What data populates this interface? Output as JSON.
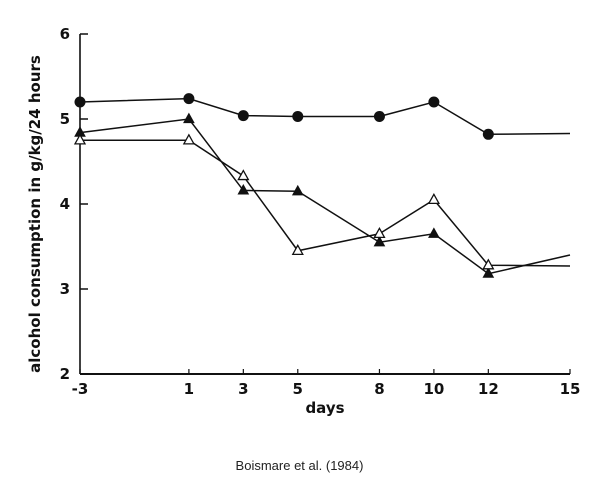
{
  "chart_data": {
    "type": "line",
    "xlabel": "days",
    "ylabel": "alcohol consumption in g/kg/24 hours",
    "xlim": [
      -3,
      15
    ],
    "ylim": [
      2,
      6
    ],
    "x_ticks": [
      -3,
      1,
      3,
      5,
      8,
      10,
      12,
      15
    ],
    "y_ticks": [
      2,
      3,
      4,
      5,
      6
    ],
    "grid": false,
    "legend": "none",
    "series": [
      {
        "marker": "filled-circle",
        "points": [
          [
            -3,
            5.2
          ],
          [
            1,
            5.24
          ],
          [
            3,
            5.04
          ],
          [
            5,
            5.03
          ],
          [
            8,
            5.03
          ],
          [
            10,
            5.2
          ],
          [
            12,
            4.82
          ],
          [
            15,
            4.83
          ]
        ],
        "marker_count": 7
      },
      {
        "marker": "filled-triangle",
        "points": [
          [
            -3,
            4.84
          ],
          [
            1,
            5.0
          ],
          [
            3,
            4.16
          ],
          [
            5,
            4.15
          ],
          [
            8,
            3.55
          ],
          [
            10,
            3.65
          ],
          [
            12,
            3.18
          ],
          [
            15,
            3.4
          ]
        ],
        "marker_count": 7
      },
      {
        "marker": "open-triangle",
        "points": [
          [
            -3,
            4.75
          ],
          [
            1,
            4.75
          ],
          [
            3,
            4.33
          ],
          [
            5,
            3.45
          ],
          [
            8,
            3.65
          ],
          [
            10,
            4.05
          ],
          [
            12,
            3.28
          ],
          [
            15,
            3.27
          ]
        ],
        "marker_count": 7
      }
    ]
  },
  "caption": "Boismare et al. (1984)",
  "colors": {
    "line": "#111111"
  }
}
